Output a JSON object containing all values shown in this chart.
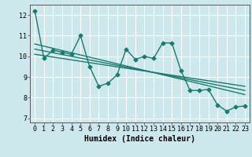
{
  "title": "",
  "xlabel": "Humidex (Indice chaleur)",
  "ylabel": "",
  "bg_color": "#cce8ec",
  "grid_color": "#ffffff",
  "line_color": "#1a7a6e",
  "xlim": [
    -0.5,
    23.5
  ],
  "ylim": [
    6.8,
    12.5
  ],
  "yticks": [
    7,
    8,
    9,
    10,
    11,
    12
  ],
  "xticks": [
    0,
    1,
    2,
    3,
    4,
    5,
    6,
    7,
    8,
    9,
    10,
    11,
    12,
    13,
    14,
    15,
    16,
    17,
    18,
    19,
    20,
    21,
    22,
    23
  ],
  "main_x": [
    0,
    1,
    2,
    3,
    4,
    5,
    6,
    7,
    8,
    9,
    10,
    11,
    12,
    13,
    14,
    15,
    16,
    17,
    18,
    19,
    20,
    21,
    22,
    23
  ],
  "main_y": [
    12.2,
    9.9,
    10.3,
    10.2,
    10.1,
    11.0,
    9.5,
    8.55,
    8.7,
    9.1,
    10.35,
    9.85,
    10.0,
    9.9,
    10.65,
    10.65,
    9.3,
    8.35,
    8.35,
    8.4,
    7.65,
    7.35,
    7.55,
    7.6
  ],
  "trend1_x": [
    0,
    23
  ],
  "trend1_y": [
    10.6,
    8.15
  ],
  "trend2_x": [
    0,
    23
  ],
  "trend2_y": [
    10.35,
    8.35
  ],
  "trend3_x": [
    0,
    23
  ],
  "trend3_y": [
    10.1,
    8.55
  ],
  "marker": "D",
  "markersize": 2.5,
  "linewidth": 1.0,
  "xlabel_fontsize": 7,
  "tick_fontsize": 6
}
